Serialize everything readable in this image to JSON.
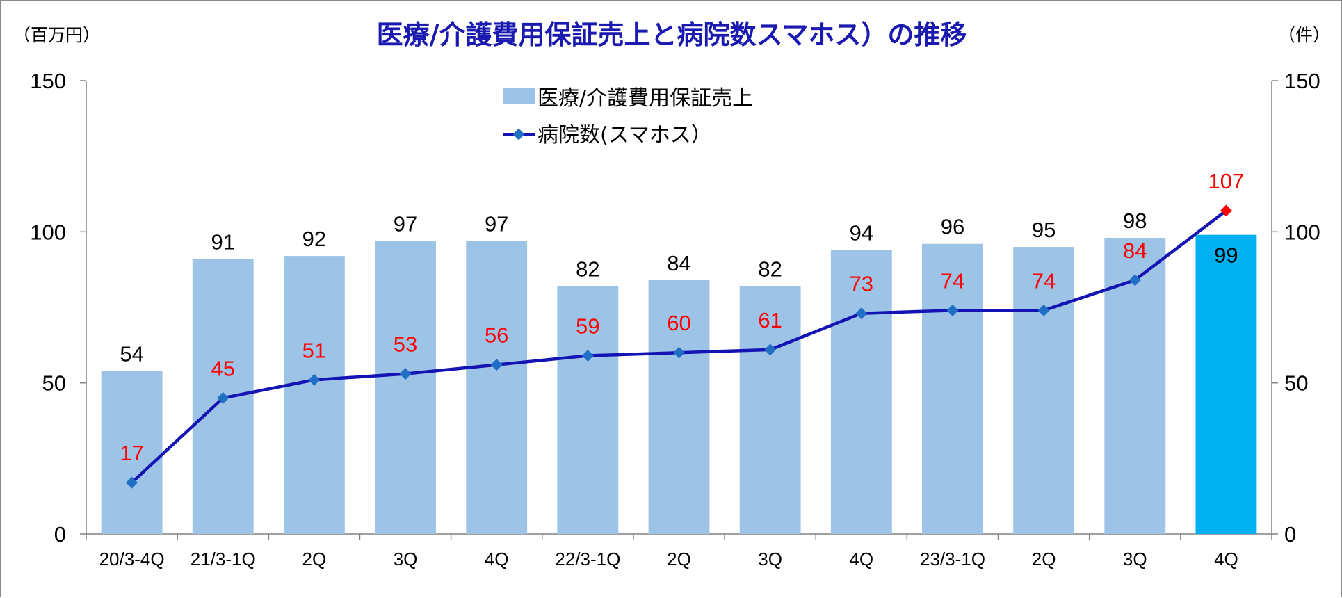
{
  "chart_data": {
    "type": "bar",
    "title": "医療/介護費用保証売上と病院数スマホス）の推移",
    "y_left_unit": "（百万円）",
    "y_right_unit": "（件）",
    "ylim_left": [
      0,
      150
    ],
    "ylim_right": [
      0,
      150
    ],
    "y_ticks": [
      "0",
      "50",
      "100",
      "150"
    ],
    "categories": [
      "20/3-4Q",
      "21/3-1Q",
      "2Q",
      "3Q",
      "4Q",
      "22/3-1Q",
      "2Q",
      "3Q",
      "4Q",
      "23/3-1Q",
      "2Q",
      "3Q",
      "4Q"
    ],
    "series": [
      {
        "name": "医療/介護費用保証売上",
        "kind": "bar",
        "axis": "left",
        "values": [
          54,
          91,
          92,
          97,
          97,
          82,
          84,
          82,
          94,
          96,
          95,
          98,
          99
        ],
        "color": "#9dc3e6",
        "highlight_color": "#00b0f0",
        "highlight_index": 12
      },
      {
        "name": "病院数(スマホス）",
        "kind": "line",
        "axis": "right",
        "values": [
          17,
          45,
          51,
          53,
          56,
          59,
          60,
          61,
          73,
          74,
          74,
          84,
          107
        ],
        "color": "#1414b4",
        "marker_color": "#1f6fc4",
        "highlight_marker_color": "#ff0000",
        "label_color": "#ff0000"
      }
    ],
    "legend": "top-center",
    "grid": false
  }
}
